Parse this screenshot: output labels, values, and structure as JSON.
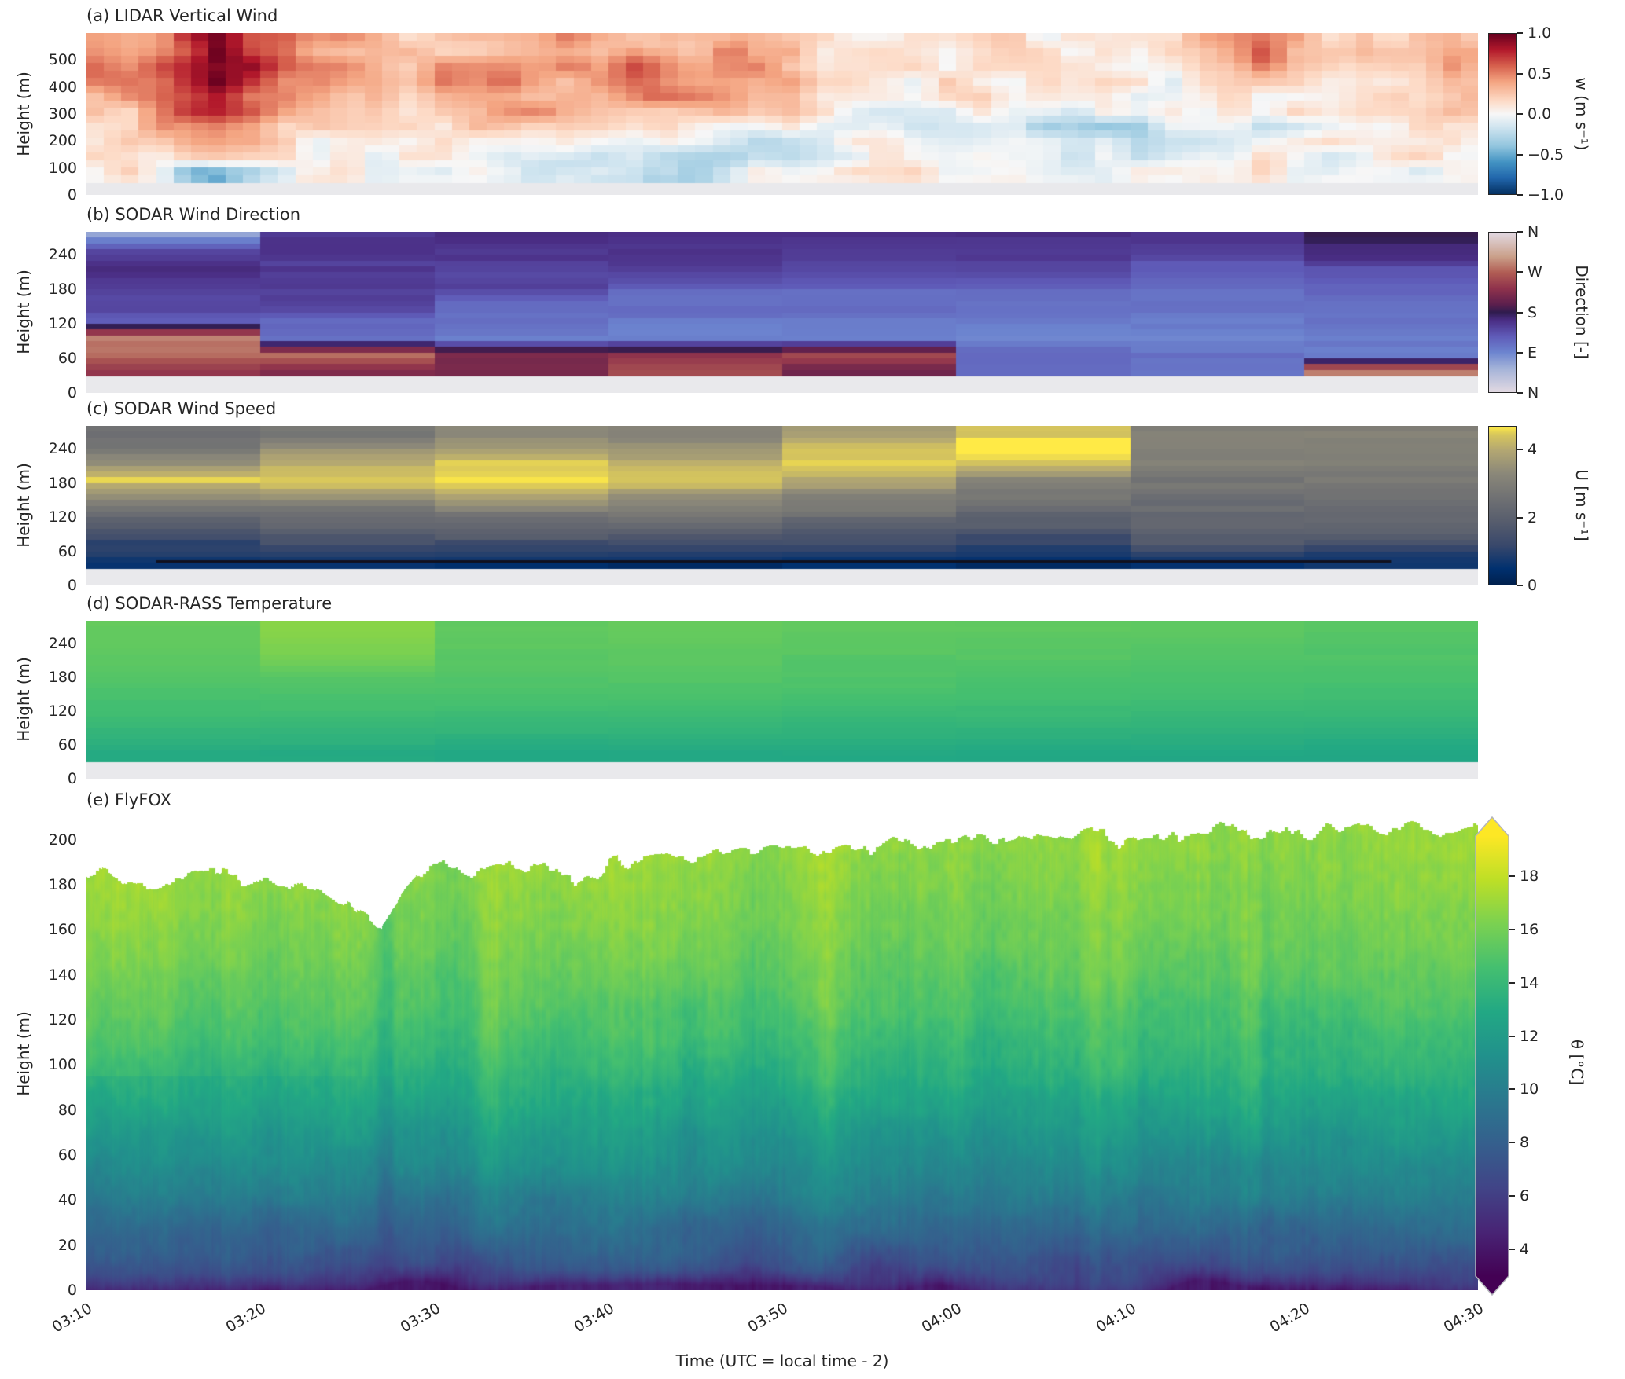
{
  "figure": {
    "xlabel": "Time (UTC = local time - 2)",
    "x_tick_labels": [
      "03:10",
      "03:20",
      "03:30",
      "03:40",
      "03:50",
      "04:00",
      "04:10",
      "04:20",
      "04:30"
    ],
    "background": "#ffffff",
    "text_color": "#262626",
    "nodata_color": "#e9e9ec"
  },
  "colormaps": {
    "RdBu_r": [
      [
        0.0,
        "#053061"
      ],
      [
        0.1,
        "#2166ac"
      ],
      [
        0.2,
        "#4393c3"
      ],
      [
        0.3,
        "#92c5de"
      ],
      [
        0.42,
        "#d1e5f0"
      ],
      [
        0.5,
        "#f7f7f7"
      ],
      [
        0.58,
        "#fddbc7"
      ],
      [
        0.7,
        "#f4a582"
      ],
      [
        0.8,
        "#d6604d"
      ],
      [
        0.9,
        "#b2182b"
      ],
      [
        1.0,
        "#67001f"
      ]
    ],
    "twilight": [
      [
        0.0,
        "#e2d9e2"
      ],
      [
        0.15,
        "#a3b2d8"
      ],
      [
        0.25,
        "#6c84cf"
      ],
      [
        0.35,
        "#5f5bb8"
      ],
      [
        0.45,
        "#4a2d84"
      ],
      [
        0.5,
        "#2f1c4e"
      ],
      [
        0.55,
        "#5c1f4d"
      ],
      [
        0.65,
        "#8f324c"
      ],
      [
        0.75,
        "#b15d54"
      ],
      [
        0.85,
        "#caa08a"
      ],
      [
        1.0,
        "#e2d9e2"
      ]
    ],
    "cividis": [
      [
        0.0,
        "#00204d"
      ],
      [
        0.1,
        "#00306f"
      ],
      [
        0.25,
        "#39486b"
      ],
      [
        0.4,
        "#575d6d"
      ],
      [
        0.55,
        "#707173"
      ],
      [
        0.7,
        "#8a8779"
      ],
      [
        0.85,
        "#b3a772"
      ],
      [
        0.95,
        "#d7c65c"
      ],
      [
        1.0,
        "#ffea46"
      ]
    ],
    "viridis": [
      [
        0.0,
        "#440154"
      ],
      [
        0.1,
        "#482475"
      ],
      [
        0.2,
        "#414487"
      ],
      [
        0.3,
        "#355f8d"
      ],
      [
        0.4,
        "#2a788e"
      ],
      [
        0.5,
        "#21918c"
      ],
      [
        0.6,
        "#22a884"
      ],
      [
        0.7,
        "#44bf70"
      ],
      [
        0.8,
        "#7ad151"
      ],
      [
        0.9,
        "#bddf26"
      ],
      [
        1.0,
        "#fde725"
      ]
    ]
  },
  "chart_data": [
    {
      "id": "a",
      "type": "heatmap",
      "title": "(a) LIDAR Vertical Wind",
      "ylabel": "Height (m)",
      "ylim": [
        0,
        600
      ],
      "y_ticks": [
        500,
        400,
        300,
        200,
        100,
        0
      ],
      "data_min_height": 45,
      "time_span_minutes": 80,
      "colormap": "RdBu_r",
      "colorbar": {
        "label": "w (m s⁻¹)",
        "ticks": [
          "1.0",
          "0.5",
          "0.0",
          "−0.5",
          "−1.0"
        ],
        "tick_values": [
          1,
          0.5,
          0,
          -0.5,
          -1
        ],
        "range": [
          -1,
          1
        ]
      },
      "grid_row_heights": [
        550,
        490,
        430,
        370,
        310,
        250,
        190,
        130,
        90
      ],
      "grid": [
        [
          0.35,
          0.95,
          0.45,
          0.35,
          0.3,
          0.45,
          0.25,
          0.4,
          0.15,
          0.1,
          0.15,
          0.1,
          0.1,
          0.45,
          0.1,
          0.25
        ],
        [
          0.4,
          1.0,
          0.5,
          0.3,
          0.5,
          0.4,
          0.55,
          0.35,
          0.2,
          0.1,
          0.1,
          0.15,
          0.05,
          0.5,
          0.15,
          0.3
        ],
        [
          0.45,
          0.9,
          0.4,
          0.3,
          0.55,
          0.35,
          0.65,
          0.45,
          0.25,
          0.1,
          0.05,
          0.1,
          0.0,
          0.2,
          0.1,
          0.25
        ],
        [
          0.4,
          0.75,
          0.35,
          0.25,
          0.4,
          0.3,
          0.5,
          0.3,
          0.2,
          0.05,
          0.05,
          0.0,
          -0.05,
          0.1,
          0.15,
          0.3
        ],
        [
          0.3,
          0.65,
          0.3,
          0.2,
          0.3,
          0.35,
          0.3,
          0.2,
          0.1,
          0.0,
          -0.05,
          -0.15,
          0.0,
          0.05,
          0.1,
          0.2
        ],
        [
          0.25,
          0.55,
          0.25,
          0.15,
          0.2,
          0.3,
          0.2,
          0.1,
          0.0,
          -0.1,
          -0.2,
          -0.35,
          -0.15,
          -0.05,
          0.05,
          0.15
        ],
        [
          0.15,
          0.4,
          0.15,
          0.1,
          0.1,
          0.2,
          -0.15,
          -0.05,
          -0.1,
          0.0,
          -0.1,
          -0.2,
          -0.15,
          0.0,
          0.1,
          0.05
        ],
        [
          0.05,
          0.25,
          0.1,
          0.05,
          0.1,
          -0.25,
          -0.2,
          -0.25,
          -0.1,
          -0.05,
          0.0,
          -0.1,
          0.0,
          0.05,
          0.0,
          0.1
        ],
        [
          0.1,
          -0.45,
          0.05,
          0.1,
          0.0,
          -0.1,
          -0.35,
          -0.1,
          0.0,
          0.05,
          0.0,
          0.0,
          0.05,
          0.0,
          0.05,
          0.0
        ]
      ]
    },
    {
      "id": "b",
      "type": "heatmap",
      "title": "(b) SODAR Wind Direction",
      "ylabel": "Height (m)",
      "ylim": [
        0,
        280
      ],
      "y_ticks": [
        240,
        180,
        120,
        60,
        0
      ],
      "data_min_height": 30,
      "time_span_minutes": 80,
      "colormap": "twilight",
      "colorbar": {
        "label": "Direction [-]",
        "ticks": [
          "N",
          "W",
          "S",
          "E",
          "N"
        ],
        "tick_values": [
          360,
          270,
          180,
          90,
          0
        ],
        "range": [
          0,
          360
        ]
      },
      "grid_row_heights": [
        275,
        245,
        215,
        185,
        155,
        125,
        95,
        65,
        40
      ],
      "grid": [
        [
          70,
          160,
          158,
          160,
          158,
          156,
          158,
          185
        ],
        [
          148,
          155,
          152,
          154,
          152,
          150,
          148,
          165
        ],
        [
          155,
          150,
          148,
          148,
          146,
          142,
          130,
          135
        ],
        [
          152,
          146,
          142,
          122,
          120,
          118,
          116,
          118
        ],
        [
          146,
          140,
          120,
          112,
          110,
          108,
          106,
          108
        ],
        [
          120,
          118,
          108,
          104,
          102,
          100,
          99,
          100
        ],
        [
          295,
          104,
          100,
          98,
          96,
          95,
          94,
          95
        ],
        [
          268,
          272,
          225,
          230,
          252,
          115,
          104,
          98
        ],
        [
          235,
          228,
          215,
          250,
          210,
          108,
          100,
          290
        ]
      ]
    },
    {
      "id": "c",
      "type": "heatmap",
      "title": "(c) SODAR Wind Speed",
      "ylabel": "Height (m)",
      "ylim": [
        0,
        280
      ],
      "y_ticks": [
        240,
        180,
        120,
        60,
        0
      ],
      "data_min_height": 30,
      "time_span_minutes": 80,
      "colormap": "cividis",
      "colorbar": {
        "label": "U [m s⁻¹]",
        "ticks": [
          "4",
          "2",
          "0"
        ],
        "tick_values": [
          4,
          2,
          0
        ],
        "range": [
          0,
          4.7
        ]
      },
      "grid_row_heights": [
        275,
        245,
        215,
        185,
        155,
        125,
        95,
        65,
        40
      ],
      "grid": [
        [
          2.5,
          2.7,
          3.2,
          2.9,
          3.6,
          4.2,
          2.9,
          3.0
        ],
        [
          2.7,
          3.3,
          3.8,
          3.4,
          4.3,
          4.8,
          3.1,
          3.2
        ],
        [
          3.4,
          3.9,
          4.4,
          4.0,
          4.7,
          4.3,
          3.0,
          3.1
        ],
        [
          4.5,
          4.6,
          4.8,
          4.5,
          4.0,
          3.4,
          2.7,
          2.8
        ],
        [
          3.4,
          3.6,
          3.8,
          3.5,
          3.2,
          2.8,
          2.5,
          2.6
        ],
        [
          2.4,
          2.6,
          2.8,
          2.7,
          2.5,
          2.2,
          2.3,
          2.3
        ],
        [
          1.6,
          1.8,
          2.0,
          1.9,
          1.8,
          1.6,
          2.1,
          2.1
        ],
        [
          1.0,
          1.1,
          1.2,
          1.1,
          1.1,
          1.0,
          1.5,
          1.3
        ],
        [
          0.5,
          0.4,
          0.4,
          0.4,
          0.4,
          0.4,
          0.6,
          0.6
        ]
      ],
      "annotation_line": {
        "height_m": 42,
        "start_min": 4,
        "end_min": 75,
        "color": "#11111e"
      }
    },
    {
      "id": "d",
      "type": "heatmap",
      "title": "(d) SODAR-RASS Temperature",
      "ylabel": "Height (m)",
      "ylim": [
        0,
        280
      ],
      "y_ticks": [
        240,
        180,
        120,
        60,
        0
      ],
      "data_min_height": 30,
      "time_span_minutes": 80,
      "colormap": "viridis",
      "value_range": [
        3,
        19.5
      ],
      "grid_row_heights": [
        275,
        245,
        215,
        185,
        155,
        125,
        95,
        65,
        40
      ],
      "grid": [
        [
          15.6,
          16.5,
          15.5,
          15.7,
          15.5,
          15.4,
          15.3,
          15.1
        ],
        [
          15.5,
          16.4,
          15.4,
          15.5,
          15.3,
          15.3,
          15.2,
          15.0
        ],
        [
          15.3,
          16.0,
          15.2,
          15.3,
          15.1,
          15.1,
          15.0,
          14.9
        ],
        [
          15.1,
          15.3,
          15.0,
          15.1,
          14.9,
          14.9,
          14.8,
          14.7
        ],
        [
          14.8,
          14.9,
          14.8,
          14.8,
          14.7,
          14.6,
          14.6,
          14.5
        ],
        [
          14.5,
          14.5,
          14.4,
          14.4,
          14.3,
          14.2,
          14.2,
          14.1
        ],
        [
          14.0,
          14.0,
          13.9,
          13.9,
          13.8,
          13.8,
          13.7,
          13.7
        ],
        [
          13.4,
          13.4,
          13.3,
          13.3,
          13.3,
          13.2,
          13.2,
          13.1
        ],
        [
          13.0,
          13.0,
          12.9,
          12.9,
          12.9,
          12.8,
          12.8,
          12.8
        ]
      ]
    },
    {
      "id": "e",
      "type": "heatmap",
      "title": "(e) FlyFOX",
      "ylabel": "Height (m)",
      "ylim": [
        0,
        210
      ],
      "y_ticks": [
        200,
        180,
        160,
        140,
        120,
        100,
        80,
        60,
        40,
        20,
        0
      ],
      "time_span_minutes": 80,
      "colormap": "viridis",
      "colorbar": {
        "label": "θ [°C]",
        "ticks": [
          "18",
          "16",
          "14",
          "12",
          "10",
          "8",
          "6",
          "4"
        ],
        "tick_values": [
          18,
          16,
          14,
          12,
          10,
          8,
          6,
          4
        ],
        "range": [
          3,
          19.5
        ],
        "extend": "both"
      },
      "profile_height_theta": [
        [
          0,
          4.2
        ],
        [
          4,
          5.6
        ],
        [
          10,
          7.0
        ],
        [
          20,
          8.0
        ],
        [
          32,
          9.0
        ],
        [
          45,
          10.2
        ],
        [
          60,
          11.2
        ],
        [
          78,
          12.4
        ],
        [
          95,
          13.4
        ],
        [
          112,
          14.3
        ],
        [
          130,
          15.1
        ],
        [
          150,
          15.8
        ],
        [
          170,
          16.3
        ],
        [
          190,
          16.7
        ],
        [
          210,
          17.0
        ]
      ],
      "top_height_profile": [
        [
          0,
          186
        ],
        [
          4,
          180
        ],
        [
          8,
          184
        ],
        [
          12,
          178
        ],
        [
          15,
          172
        ],
        [
          17,
          164
        ],
        [
          19,
          186
        ],
        [
          24,
          188
        ],
        [
          28,
          185
        ],
        [
          33,
          192
        ],
        [
          38,
          194
        ],
        [
          44,
          197
        ],
        [
          50,
          199
        ],
        [
          56,
          201
        ],
        [
          62,
          203
        ],
        [
          70,
          204
        ],
        [
          80,
          205
        ]
      ]
    }
  ]
}
